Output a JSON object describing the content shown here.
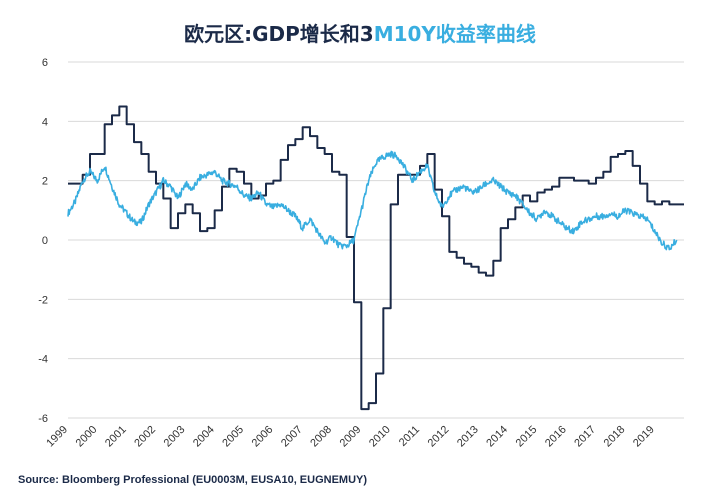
{
  "title": {
    "part1": "欧元区:GDP增长和3",
    "part2": "M10Y收益率曲线"
  },
  "source": "Source: Bloomberg Professional  (EU0003M, EUSA10, EUGNEMUY)",
  "colors": {
    "gdp": "#1b2a48",
    "curve": "#39aee0",
    "grid": "#d9d9d9"
  },
  "chart_data": {
    "type": "line",
    "xlim": [
      1999,
      2020
    ],
    "ylim": [
      -6,
      6
    ],
    "y_ticks": [
      6,
      4,
      2,
      0,
      -2,
      -4,
      -6
    ],
    "y_tick_labels": [
      "6",
      "4",
      "2",
      "0",
      "-2",
      "-4",
      "-6"
    ],
    "x_ticks": [
      1999,
      2000,
      2001,
      2002,
      2003,
      2004,
      2005,
      2006,
      2007,
      2008,
      2009,
      2010,
      2011,
      2012,
      2013,
      2014,
      2015,
      2016,
      2017,
      2018,
      2019
    ],
    "x_tick_labels": [
      "1999",
      "2000",
      "2001",
      "2002",
      "2003",
      "2004",
      "2005",
      "2006",
      "2007",
      "2008",
      "2009",
      "2010",
      "2011",
      "2012",
      "2013",
      "2014",
      "2015",
      "2016",
      "2017",
      "2018",
      "2019"
    ],
    "grid": "horizontal",
    "series": [
      {
        "key": "gdp",
        "step": true,
        "x": [
          1999.0,
          1999.25,
          1999.5,
          1999.75,
          2000.0,
          2000.25,
          2000.5,
          2000.75,
          2001.0,
          2001.25,
          2001.5,
          2001.75,
          2002.0,
          2002.25,
          2002.5,
          2002.75,
          2003.0,
          2003.25,
          2003.5,
          2003.75,
          2004.0,
          2004.25,
          2004.5,
          2004.75,
          2005.0,
          2005.25,
          2005.5,
          2005.75,
          2006.0,
          2006.25,
          2006.5,
          2006.75,
          2007.0,
          2007.25,
          2007.5,
          2007.75,
          2008.0,
          2008.25,
          2008.5,
          2008.75,
          2009.0,
          2009.25,
          2009.5,
          2009.75,
          2010.0,
          2010.25,
          2010.5,
          2010.75,
          2011.0,
          2011.25,
          2011.5,
          2011.75,
          2012.0,
          2012.25,
          2012.5,
          2012.75,
          2013.0,
          2013.25,
          2013.5,
          2013.75,
          2014.0,
          2014.25,
          2014.5,
          2014.75,
          2015.0,
          2015.25,
          2015.5,
          2015.75,
          2016.0,
          2016.25,
          2016.5,
          2016.75,
          2017.0,
          2017.25,
          2017.5,
          2017.75,
          2018.0,
          2018.25,
          2018.5,
          2018.75,
          2019.0,
          2019.25,
          2019.5,
          2019.75
        ],
        "y": [
          1.9,
          1.9,
          2.2,
          2.9,
          2.9,
          3.9,
          4.2,
          4.5,
          3.9,
          3.3,
          2.9,
          2.3,
          1.9,
          1.4,
          0.4,
          0.9,
          1.2,
          0.9,
          0.3,
          0.4,
          1.0,
          1.8,
          2.4,
          2.3,
          1.9,
          1.4,
          1.5,
          1.9,
          2.0,
          2.7,
          3.2,
          3.4,
          3.8,
          3.5,
          3.1,
          2.9,
          2.3,
          2.2,
          0.1,
          -2.1,
          -5.7,
          -5.5,
          -4.5,
          -2.3,
          1.2,
          2.2,
          2.2,
          2.2,
          2.5,
          2.9,
          1.7,
          0.8,
          -0.4,
          -0.6,
          -0.8,
          -0.9,
          -1.1,
          -1.2,
          -0.7,
          0.4,
          0.7,
          1.1,
          1.5,
          1.3,
          1.6,
          1.7,
          1.8,
          2.1,
          2.1,
          2.0,
          2.0,
          1.9,
          2.1,
          2.3,
          2.8,
          2.9,
          3.0,
          2.5,
          1.9,
          1.3,
          1.2,
          1.3,
          1.2,
          1.2
        ]
      },
      {
        "key": "curve",
        "step": false,
        "x": [
          1999.0,
          1999.25,
          1999.5,
          1999.75,
          2000.0,
          2000.25,
          2000.5,
          2000.75,
          2001.0,
          2001.25,
          2001.5,
          2001.75,
          2002.0,
          2002.25,
          2002.5,
          2002.75,
          2003.0,
          2003.25,
          2003.5,
          2003.75,
          2004.0,
          2004.25,
          2004.5,
          2004.75,
          2005.0,
          2005.25,
          2005.5,
          2005.75,
          2006.0,
          2006.25,
          2006.5,
          2006.75,
          2007.0,
          2007.25,
          2007.5,
          2007.75,
          2008.0,
          2008.25,
          2008.5,
          2008.75,
          2009.0,
          2009.25,
          2009.5,
          2009.75,
          2010.0,
          2010.25,
          2010.5,
          2010.75,
          2011.0,
          2011.25,
          2011.5,
          2011.75,
          2012.0,
          2012.25,
          2012.5,
          2012.75,
          2013.0,
          2013.25,
          2013.5,
          2013.75,
          2014.0,
          2014.25,
          2014.5,
          2014.75,
          2015.0,
          2015.25,
          2015.5,
          2015.75,
          2016.0,
          2016.25,
          2016.5,
          2016.75,
          2017.0,
          2017.25,
          2017.5,
          2017.75,
          2018.0,
          2018.25,
          2018.5,
          2018.75,
          2019.0,
          2019.25,
          2019.5,
          2019.75
        ],
        "y": [
          0.9,
          1.3,
          2.0,
          2.3,
          2.0,
          2.5,
          1.8,
          1.2,
          0.9,
          0.6,
          0.6,
          1.2,
          1.6,
          2.0,
          1.8,
          1.4,
          1.9,
          1.7,
          2.1,
          2.2,
          2.3,
          2.0,
          1.9,
          1.8,
          1.5,
          1.4,
          1.6,
          1.2,
          1.1,
          1.2,
          1.0,
          0.8,
          0.4,
          0.7,
          0.3,
          -0.1,
          0.1,
          -0.2,
          -0.2,
          0.0,
          1.0,
          2.0,
          2.6,
          2.8,
          2.9,
          2.8,
          2.4,
          2.0,
          2.3,
          2.5,
          1.6,
          1.1,
          1.5,
          1.7,
          1.8,
          1.6,
          1.7,
          1.9,
          2.0,
          1.8,
          1.6,
          1.5,
          1.2,
          0.9,
          0.7,
          1.0,
          0.8,
          0.6,
          0.4,
          0.3,
          0.6,
          0.7,
          0.8,
          0.8,
          0.9,
          0.8,
          1.0,
          0.9,
          0.8,
          0.7,
          0.3,
          -0.1,
          -0.3,
          0.0
        ]
      }
    ]
  }
}
